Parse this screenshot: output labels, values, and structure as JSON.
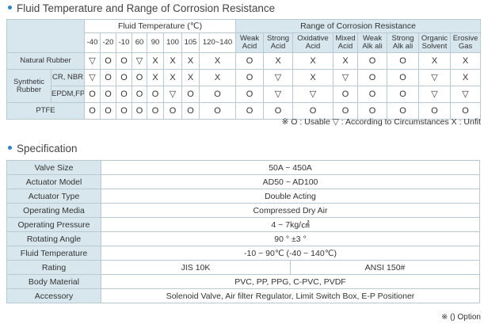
{
  "fluid_section": {
    "title": "Fluid Temperature and Range of Corrosion Resistance",
    "temp_group": "Fluid Temperature (℃)",
    "range_group": "Range of Corrosion Resistance",
    "temps": [
      "-40",
      "-20",
      "-10",
      "60",
      "90",
      "100",
      "105",
      "120~140"
    ],
    "chemicals": [
      [
        "Weak",
        "Acid"
      ],
      [
        "Strong",
        "Acid"
      ],
      [
        "Oxidative",
        "Acid"
      ],
      [
        "Mixed",
        "Acid"
      ],
      [
        "Weak",
        "Alk ali"
      ],
      [
        "Strong",
        "Alk ali"
      ],
      [
        "Organic",
        "Solvent"
      ],
      [
        "Erosive",
        "Gas"
      ]
    ],
    "synthetic_label": [
      "Synthetic",
      "Rubber"
    ],
    "rows": [
      {
        "label": "Natural Rubber",
        "symbols": [
          "▽",
          "O",
          "O",
          "▽",
          "X",
          "X",
          "X",
          "X",
          "O",
          "X",
          "X",
          "X",
          "O",
          "O",
          "X",
          "X"
        ]
      },
      {
        "label": "CR, NBR",
        "symbols": [
          "▽",
          "O",
          "O",
          "O",
          "X",
          "X",
          "X",
          "X",
          "O",
          "▽",
          "X",
          "▽",
          "O",
          "O",
          "▽",
          "X"
        ]
      },
      {
        "label": "EPDM,FPM",
        "symbols": [
          "O",
          "O",
          "O",
          "O",
          "O",
          "▽",
          "O",
          "O",
          "O",
          "▽",
          "▽",
          "O",
          "O",
          "O",
          "▽",
          "▽"
        ]
      },
      {
        "label": "PTFE",
        "symbols": [
          "O",
          "O",
          "O",
          "O",
          "O",
          "O",
          "O",
          "O",
          "O",
          "O",
          "O",
          "O",
          "O",
          "O",
          "O",
          "O"
        ]
      }
    ],
    "legend": "※ O : Usable    ▽ : According to Circumstances    X : Unfit"
  },
  "spec_section": {
    "title": "Specification",
    "rows": [
      {
        "label": "Valve Size",
        "value": "50A ~ 450A"
      },
      {
        "label": "Actuator Model",
        "value": "AD50 ~ AD100"
      },
      {
        "label": "Actuator Type",
        "value": "Double Acting"
      },
      {
        "label": "Operating Media",
        "value": "Compressed Dry Air"
      },
      {
        "label": "Operating Pressure",
        "value": "4 ~ 7kg/㎠"
      },
      {
        "label": "Rotating Angle",
        "value": "90 ° ±3 °"
      },
      {
        "label": "Fluid Temperature",
        "value": "-10 ~ 90℃ (-40 ~ 140℃)"
      }
    ],
    "rating": {
      "label": "Rating",
      "jis": "JIS 10K",
      "ansi": "ANSI 150#"
    },
    "body_material": {
      "label": "Body Material",
      "value": "PVC, PP, PPG, C-PVC, PVDF"
    },
    "accessory": {
      "label": "Accessory",
      "value": "Solenoid Valve, Air filter Regulator, Limit Switch Box, E-P Positioner"
    },
    "note": "※ () Option"
  }
}
